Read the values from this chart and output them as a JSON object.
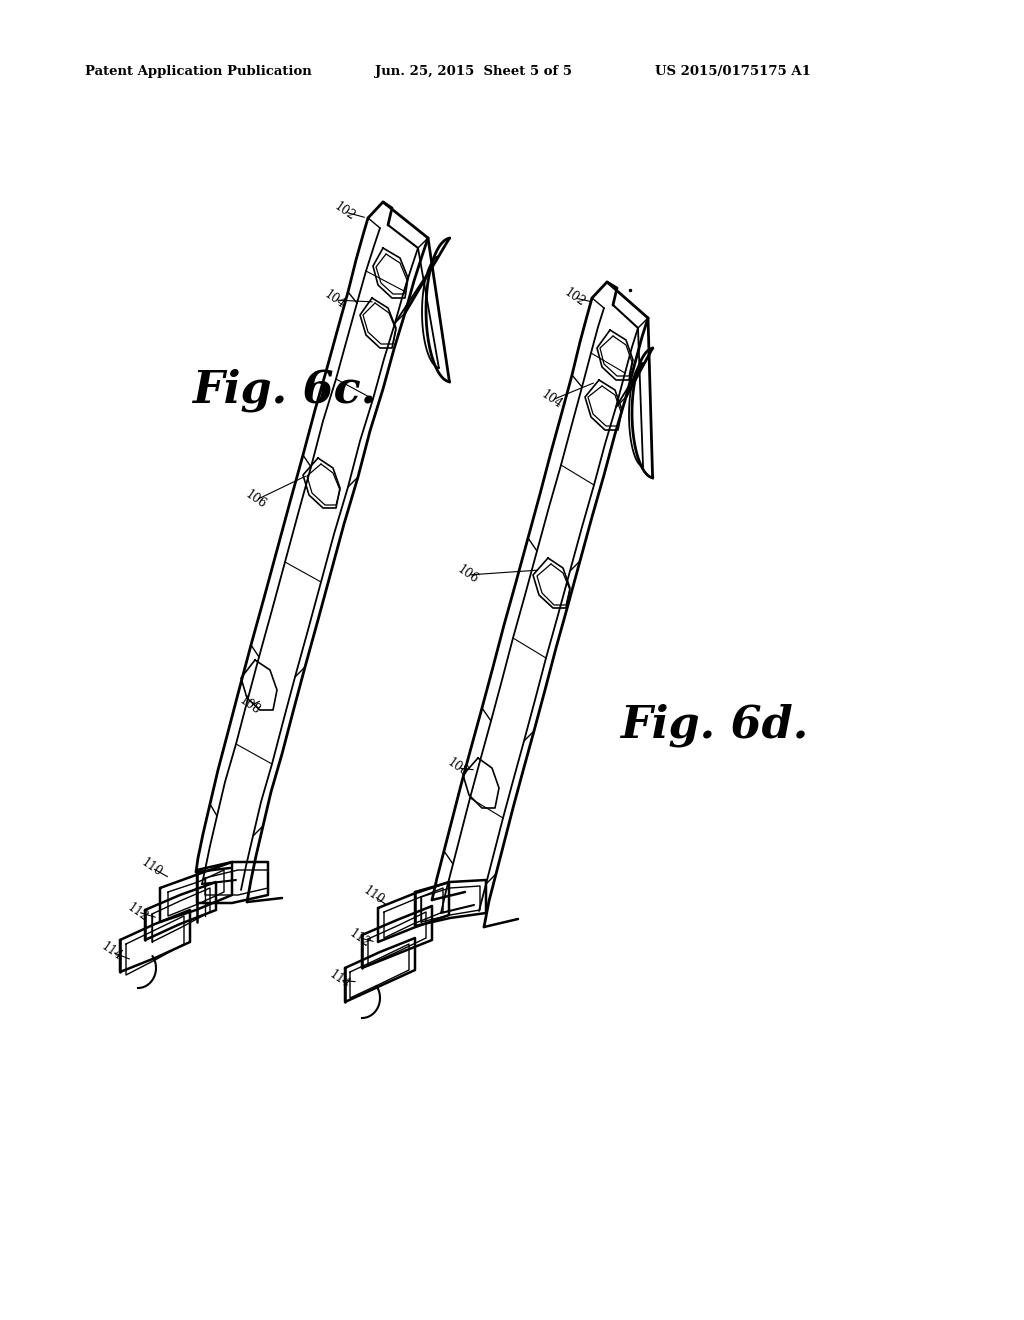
{
  "bg_color": "#ffffff",
  "line_color": "#000000",
  "header_left": "Patent Application Publication",
  "header_mid": "Jun. 25, 2015  Sheet 5 of 5",
  "header_right": "US 2015/0175175 A1",
  "fig_c_label": "Fig. 6c.",
  "fig_d_label": "Fig. 6d.",
  "fig_width": 10.24,
  "fig_height": 13.2,
  "dpi": 100
}
